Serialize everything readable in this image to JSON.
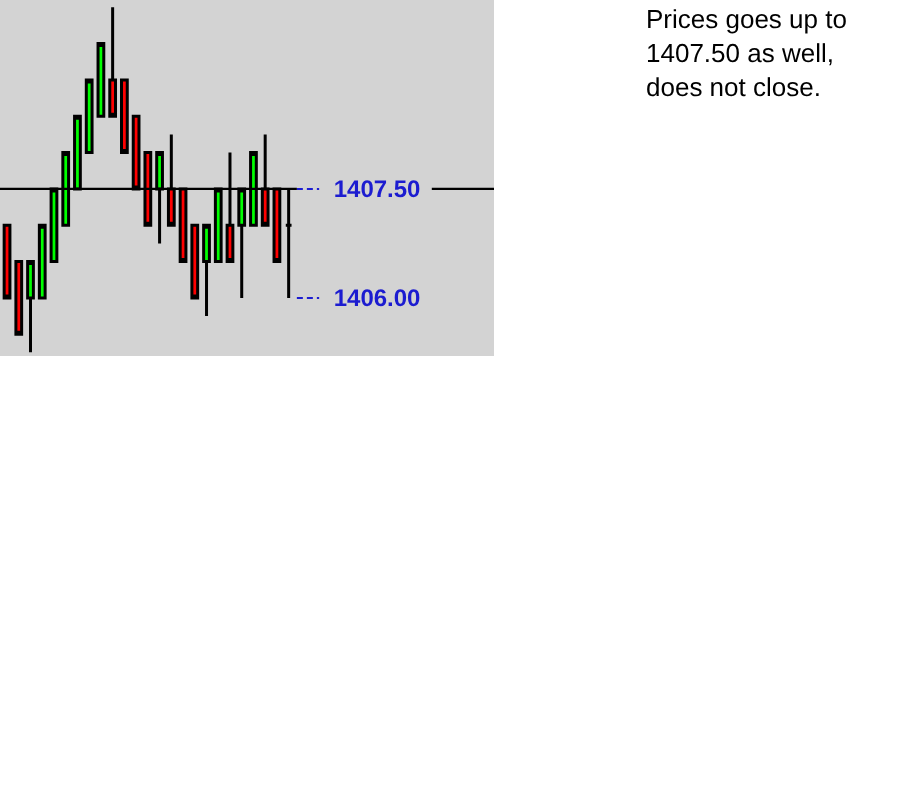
{
  "chart_data": {
    "type": "candlestick",
    "categories": [
      null,
      null,
      null,
      null,
      null,
      null,
      null,
      null,
      null,
      null,
      null,
      null,
      null,
      null,
      null,
      null,
      null,
      null,
      null,
      null,
      null,
      null,
      null,
      null,
      null
    ],
    "ohlc": [
      [
        1407,
        1407,
        1406,
        1406
      ],
      [
        1406.5,
        1406.5,
        1405.5,
        1405.5
      ],
      [
        1406,
        1406.5,
        1405.25,
        1406.5
      ],
      [
        1406,
        1407,
        1406,
        1407
      ],
      [
        1406.5,
        1407.5,
        1406.5,
        1407.5
      ],
      [
        1407,
        1408,
        1407,
        1408
      ],
      [
        1407.5,
        1408.5,
        1407.5,
        1408.5
      ],
      [
        1408,
        1409,
        1408,
        1409
      ],
      [
        1408.5,
        1409.5,
        1408.5,
        1409.5
      ],
      [
        1409,
        1410,
        1408.5,
        1408.5
      ],
      [
        1409,
        1409,
        1408,
        1408
      ],
      [
        1408.5,
        1408.5,
        1407.5,
        1407.5
      ],
      [
        1408,
        1408,
        1407,
        1407
      ],
      [
        1407.5,
        1408,
        1406.75,
        1408
      ],
      [
        1407.5,
        1408.25,
        1407,
        1407
      ],
      [
        1407.5,
        1407.5,
        1406.5,
        1406.5
      ],
      [
        1407,
        1407,
        1406,
        1406
      ],
      [
        1406.5,
        1407,
        1405.75,
        1407
      ],
      [
        1406.5,
        1407.5,
        1406.5,
        1407.5
      ],
      [
        1407,
        1408,
        1406.5,
        1406.5
      ],
      [
        1407,
        1407.5,
        1406,
        1407.5
      ],
      [
        1407,
        1408,
        1407,
        1408
      ],
      [
        1407.5,
        1408.25,
        1407,
        1407
      ],
      [
        1407.5,
        1407.5,
        1406.5,
        1406.5
      ],
      [
        1407,
        1407.5,
        1406,
        1407
      ]
    ],
    "colors": [
      "#ff0000",
      "#ff0000",
      "#00ff00",
      "#00ff00",
      "#00ff00",
      "#00ff00",
      "#00ff00",
      "#00ff00",
      "#00ff00",
      "#ff0000",
      "#ff0000",
      "#ff0000",
      "#ff0000",
      "#00ff00",
      "#ff0000",
      "#ff0000",
      "#ff0000",
      "#00ff00",
      "#00ff00",
      "#ff0000",
      "#00ff00",
      "#00ff00",
      "#ff0000",
      "#ff0000",
      "#000000"
    ],
    "ylim": [
      1405.2,
      1410.1
    ],
    "yticks": [
      {
        "value": 1407.5,
        "label": "1407.50"
      },
      {
        "value": 1406.0,
        "label": "1406.00"
      }
    ],
    "tick_labels": "y",
    "grid": false,
    "ref_lines": [
      {
        "axis": "y",
        "value": 1407.5,
        "color": "#000000"
      }
    ],
    "annotations": [
      "Prices goes up to\n1407.50 as well,\ndoes not close."
    ]
  }
}
